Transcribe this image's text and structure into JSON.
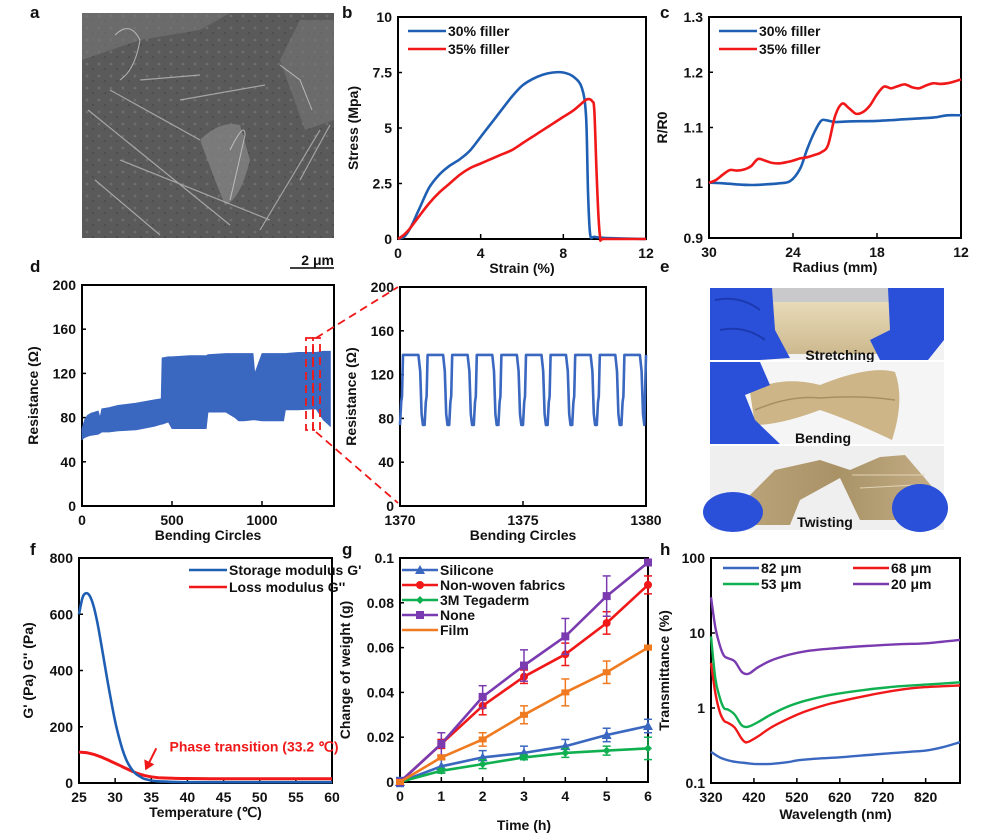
{
  "figure": {
    "panel_labels": [
      "a",
      "b",
      "c",
      "d",
      "e",
      "f",
      "g",
      "h"
    ],
    "scale_bar": "2 μm",
    "photo_captions": [
      "Stretching",
      "Bending",
      "Twisting"
    ]
  },
  "colors": {
    "blue": "#3a67c0",
    "blue2": "#1f5fb3",
    "red": "#f01818",
    "green": "#10b050",
    "purple": "#7a3bb0",
    "orange": "#f07a20",
    "skin": "#e3d3ae",
    "glove": "#2a4fd8"
  },
  "chart_data": [
    {
      "id": "b",
      "type": "line",
      "title": "",
      "xlabel": "Strain (%)",
      "ylabel": "Stress (Mpa)",
      "xlim": [
        0,
        12
      ],
      "ylim": [
        0,
        10
      ],
      "xticks": [
        0,
        4,
        8,
        12
      ],
      "yticks": [
        0,
        2.5,
        5,
        7.5,
        10
      ],
      "ytick_labels": [
        "0",
        "2.5",
        "5",
        "7.5",
        "10"
      ],
      "legend": "top-left",
      "series": [
        {
          "name": "30% filler",
          "color": "blue2",
          "x": [
            0,
            0.3,
            0.6,
            1,
            1.5,
            2,
            2.5,
            3,
            3.5,
            4,
            4.5,
            5,
            5.5,
            6,
            6.5,
            7,
            7.5,
            8,
            8.5,
            8.9,
            9.1,
            9.2,
            9.3,
            9.5,
            10,
            12
          ],
          "y": [
            0,
            0.1,
            0.5,
            1.3,
            2.3,
            2.9,
            3.3,
            3.6,
            4.0,
            4.6,
            5.2,
            5.8,
            6.4,
            6.9,
            7.2,
            7.4,
            7.5,
            7.5,
            7.3,
            6.8,
            5.5,
            2,
            0.2,
            0.1,
            0.05,
            0
          ]
        },
        {
          "name": "35% filler",
          "color": "red",
          "x": [
            0,
            0.3,
            0.6,
            1,
            1.5,
            2,
            2.5,
            3,
            3.5,
            4,
            4.5,
            5,
            5.5,
            6,
            6.5,
            7,
            7.5,
            8,
            8.5,
            9,
            9.2,
            9.4,
            9.5,
            9.6,
            9.7,
            9.8,
            10,
            12
          ],
          "y": [
            0,
            0.2,
            0.5,
            1.0,
            1.6,
            2.1,
            2.5,
            2.9,
            3.2,
            3.4,
            3.6,
            3.8,
            4.0,
            4.3,
            4.6,
            4.9,
            5.2,
            5.5,
            5.8,
            6.2,
            6.3,
            6.2,
            5.8,
            3.2,
            1.0,
            0,
            0,
            0
          ]
        }
      ]
    },
    {
      "id": "c",
      "type": "line",
      "xlabel": "Radius (mm)",
      "ylabel": "R/R0",
      "xlim": [
        30,
        12
      ],
      "ylim": [
        0.9,
        1.3
      ],
      "xticks": [
        30,
        24,
        18,
        12
      ],
      "yticks": [
        0.9,
        1,
        1.1,
        1.2,
        1.3
      ],
      "ytick_labels": [
        "0.9",
        "1",
        "1.1",
        "1.2",
        "1.3"
      ],
      "legend": "top-left",
      "series": [
        {
          "name": "30% filler",
          "color": "blue2",
          "x": [
            30,
            29,
            28,
            27,
            26,
            25,
            24.2,
            23.5,
            23,
            22.5,
            22,
            21.6,
            21,
            20,
            18,
            16,
            14,
            13,
            12
          ],
          "y": [
            1.0,
            0.999,
            0.997,
            0.996,
            0.997,
            0.999,
            1.003,
            1.025,
            1.06,
            1.09,
            1.112,
            1.113,
            1.11,
            1.111,
            1.112,
            1.115,
            1.118,
            1.122,
            1.122
          ]
        },
        {
          "name": "35% filler",
          "color": "red",
          "x": [
            30,
            29.5,
            29,
            28.5,
            28,
            27.5,
            27,
            26.5,
            26,
            25.5,
            25,
            24.5,
            24,
            23.5,
            23,
            22.5,
            22,
            21.5,
            21,
            20.5,
            20,
            19.5,
            19,
            18.5,
            18,
            17.5,
            17,
            16.5,
            16,
            15.5,
            15,
            14.5,
            14,
            13.5,
            13,
            12.5,
            12
          ],
          "y": [
            1.0,
            1.005,
            1.015,
            1.023,
            1.022,
            1.024,
            1.03,
            1.043,
            1.04,
            1.036,
            1.035,
            1.037,
            1.04,
            1.044,
            1.046,
            1.05,
            1.055,
            1.068,
            1.12,
            1.143,
            1.135,
            1.125,
            1.128,
            1.14,
            1.16,
            1.174,
            1.171,
            1.175,
            1.178,
            1.173,
            1.171,
            1.176,
            1.18,
            1.179,
            1.18,
            1.183,
            1.187
          ]
        }
      ]
    },
    {
      "id": "d1",
      "type": "area",
      "xlabel": "Bending Circles",
      "ylabel": "Resistance (Ω)",
      "xlim": [
        0,
        1400
      ],
      "ylim": [
        0,
        200
      ],
      "xticks": [
        0,
        500,
        1000
      ],
      "yticks": [
        0,
        40,
        80,
        120,
        160,
        200
      ],
      "band": {
        "x": [
          0,
          15,
          30,
          50,
          90,
          100,
          110,
          150,
          200,
          300,
          400,
          440,
          445,
          480,
          500,
          600,
          690,
          700,
          800,
          850,
          870,
          900,
          950,
          960,
          1000,
          1100,
          1120,
          1130,
          1200,
          1300,
          1340,
          1380
        ],
        "upper": [
          70,
          78,
          82,
          84,
          86,
          80,
          88,
          89,
          91,
          93,
          96,
          97,
          134,
          135,
          135,
          136,
          136,
          137,
          138,
          138,
          138,
          138,
          138,
          120,
          138,
          138,
          138,
          138,
          139,
          139,
          140,
          140
        ],
        "lower": [
          60,
          62,
          63,
          64,
          65,
          66,
          67,
          67,
          68,
          69,
          72,
          74,
          74,
          76,
          70,
          70,
          70,
          85,
          85,
          80,
          77,
          77,
          78,
          78,
          77,
          77,
          77,
          87,
          87,
          88,
          78,
          72
        ]
      },
      "annotation": "zoom region 1370–1380 (red dashed box)"
    },
    {
      "id": "d2",
      "type": "line",
      "xlabel": "Bending Circles",
      "ylabel": "Resistance (Ω)",
      "xlim": [
        1370,
        1380
      ],
      "ylim": [
        0,
        200
      ],
      "xticks": [
        1370,
        1375,
        1380
      ],
      "yticks": [
        0,
        40,
        80,
        120,
        160,
        200
      ],
      "cycles": 10,
      "high": 138,
      "low": 74,
      "shoulder": 100
    },
    {
      "id": "f",
      "type": "line",
      "xlabel": "Temperature  (℃)",
      "ylabel": "G' (Pa) G'' (Pa)",
      "xlim": [
        25,
        60
      ],
      "ylim": [
        0,
        800
      ],
      "xticks": [
        25,
        30,
        35,
        40,
        45,
        50,
        55,
        60
      ],
      "yticks": [
        0,
        200,
        400,
        600,
        800
      ],
      "legend": "top-right",
      "annotation": "Phase transition (33.2 ℃)",
      "annotation_x": 33.2,
      "series": [
        {
          "name": "Storage modulus G'",
          "color": "blue2",
          "x": [
            25,
            25.5,
            26,
            26.5,
            27,
            27.5,
            28,
            28.5,
            29,
            29.5,
            30,
            30.5,
            31,
            31.5,
            32,
            32.5,
            33,
            33.5,
            34,
            35,
            36,
            38,
            40,
            45,
            50,
            60
          ],
          "y": [
            600,
            660,
            675,
            665,
            630,
            575,
            505,
            430,
            355,
            285,
            220,
            165,
            120,
            85,
            60,
            42,
            30,
            22,
            15,
            9,
            6,
            4,
            3,
            3,
            3,
            3
          ]
        },
        {
          "name": "Loss modulus G''",
          "color": "red",
          "x": [
            25,
            26,
            27,
            28,
            29,
            30,
            31,
            32,
            33,
            34,
            35,
            36,
            38,
            40,
            45,
            50,
            60
          ],
          "y": [
            110,
            108,
            102,
            93,
            82,
            70,
            58,
            46,
            35,
            27,
            22,
            19,
            17,
            16,
            15,
            15,
            15
          ]
        }
      ]
    },
    {
      "id": "g",
      "type": "line",
      "xlabel": "Time (h)",
      "ylabel": "Change of weight (g)",
      "xlim": [
        0,
        6
      ],
      "ylim": [
        0,
        0.1
      ],
      "xticks": [
        0,
        1,
        2,
        3,
        4,
        5,
        6
      ],
      "yticks": [
        0,
        0.02,
        0.04,
        0.06,
        0.08,
        0.1
      ],
      "ytick_labels": [
        "0",
        "0.02",
        "0.04",
        "0.06",
        "0.08",
        "0.1"
      ],
      "legend": "top-left",
      "x": [
        0,
        1,
        2,
        3,
        4,
        5,
        6
      ],
      "series": [
        {
          "name": "Silicone",
          "color": "blue",
          "marker": "triangle",
          "values": [
            0,
            0.007,
            0.011,
            0.013,
            0.016,
            0.021,
            0.025
          ],
          "err": [
            0.002,
            0.003,
            0.003,
            0.003,
            0.003,
            0.003,
            0.003
          ]
        },
        {
          "name": "Non-woven fabrics",
          "color": "red",
          "marker": "circle",
          "values": [
            0,
            0.017,
            0.034,
            0.047,
            0.057,
            0.071,
            0.088
          ],
          "err": [
            0,
            0.002,
            0.004,
            0.003,
            0.005,
            0.005,
            0.004
          ]
        },
        {
          "name": "3M Tegaderm",
          "color": "green",
          "marker": "diamond",
          "values": [
            0,
            0.005,
            0.008,
            0.011,
            0.013,
            0.014,
            0.015
          ],
          "err": [
            0,
            0.001,
            0.002,
            0.001,
            0.002,
            0.002,
            0.005
          ]
        },
        {
          "name": "None",
          "color": "purple",
          "marker": "square",
          "values": [
            0,
            0.017,
            0.038,
            0.052,
            0.065,
            0.083,
            0.098
          ],
          "err": [
            0,
            0.005,
            0.005,
            0.007,
            0.008,
            0.009,
            0.001
          ]
        },
        {
          "name": "Film",
          "color": "orange",
          "marker": "none",
          "values": [
            0,
            0.011,
            0.019,
            0.03,
            0.04,
            0.049,
            0.06
          ],
          "err": [
            0,
            0.001,
            0.003,
            0.004,
            0.006,
            0.005,
            0.001
          ]
        }
      ]
    },
    {
      "id": "h",
      "type": "line",
      "xlabel": "Wavelength (nm)",
      "ylabel": "Transmittance (%)",
      "xlim": [
        320,
        900
      ],
      "ylim": [
        0.1,
        100
      ],
      "yscale": "log",
      "xticks": [
        320,
        420,
        520,
        620,
        720,
        820
      ],
      "yticks": [
        0.1,
        1,
        10,
        100
      ],
      "ytick_labels": [
        "0.1",
        "1",
        "10",
        "100"
      ],
      "legend": "top",
      "series": [
        {
          "name": "82 μm",
          "color": "blue",
          "x": [
            320,
            340,
            360,
            380,
            400,
            420,
            460,
            500,
            520,
            560,
            620,
            700,
            780,
            820,
            860,
            900
          ],
          "y": [
            0.26,
            0.22,
            0.2,
            0.19,
            0.185,
            0.18,
            0.18,
            0.19,
            0.2,
            0.21,
            0.22,
            0.24,
            0.26,
            0.27,
            0.3,
            0.35
          ]
        },
        {
          "name": "68 μm",
          "color": "red",
          "x": [
            320,
            330,
            340,
            350,
            360,
            375,
            390,
            400,
            410,
            430,
            460,
            500,
            540,
            600,
            680,
            760,
            820,
            900
          ],
          "y": [
            4,
            1.6,
            0.9,
            0.68,
            0.63,
            0.55,
            0.4,
            0.35,
            0.36,
            0.42,
            0.55,
            0.72,
            0.9,
            1.15,
            1.45,
            1.75,
            1.9,
            2.0
          ]
        },
        {
          "name": "53 μm",
          "color": "green",
          "x": [
            320,
            330,
            340,
            350,
            360,
            375,
            390,
            400,
            410,
            430,
            460,
            500,
            540,
            600,
            680,
            760,
            820,
            900
          ],
          "y": [
            9,
            2.5,
            1.4,
            1.0,
            0.95,
            0.82,
            0.6,
            0.56,
            0.57,
            0.65,
            0.82,
            1.05,
            1.25,
            1.5,
            1.75,
            1.95,
            2.05,
            2.2
          ]
        },
        {
          "name": "20 μm",
          "color": "purple",
          "x": [
            320,
            330,
            340,
            350,
            360,
            375,
            390,
            400,
            410,
            430,
            460,
            500,
            540,
            600,
            680,
            760,
            820,
            900
          ],
          "y": [
            30,
            12,
            7,
            5,
            4.6,
            4.2,
            3.1,
            2.85,
            2.9,
            3.5,
            4.3,
            5.1,
            5.7,
            6.2,
            6.7,
            7.1,
            7.3,
            8.1
          ]
        }
      ]
    }
  ]
}
